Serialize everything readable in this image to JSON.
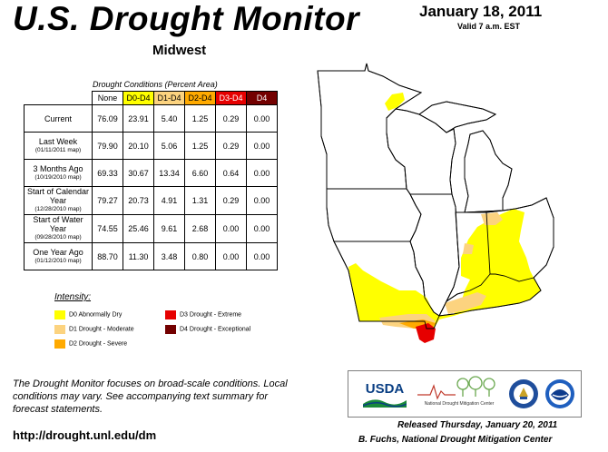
{
  "header": {
    "title": "U.S. Drought Monitor",
    "region": "Midwest",
    "date": "January 18, 2011",
    "valid": "Valid 7 a.m. EST"
  },
  "table": {
    "caption": "Drought Conditions (Percent Area)",
    "columns": [
      "None",
      "D0-D4",
      "D1-D4",
      "D2-D4",
      "D3-D4",
      "D4"
    ],
    "column_colors": [
      "#ffffff",
      "#ffff00",
      "#fcd37f",
      "#ffaa00",
      "#e60000",
      "#730000"
    ],
    "rows": [
      {
        "label": "Current",
        "sub": "",
        "values": [
          "76.09",
          "23.91",
          "5.40",
          "1.25",
          "0.29",
          "0.00"
        ]
      },
      {
        "label": "Last Week",
        "sub": "(01/11/2011 map)",
        "values": [
          "79.90",
          "20.10",
          "5.06",
          "1.25",
          "0.29",
          "0.00"
        ]
      },
      {
        "label": "3 Months Ago",
        "sub": "(10/19/2010 map)",
        "values": [
          "69.33",
          "30.67",
          "13.34",
          "6.60",
          "0.64",
          "0.00"
        ]
      },
      {
        "label": "Start of Calendar Year",
        "sub": "(12/28/2010 map)",
        "values": [
          "79.27",
          "20.73",
          "4.91",
          "1.31",
          "0.29",
          "0.00"
        ]
      },
      {
        "label": "Start of Water Year",
        "sub": "(09/28/2010 map)",
        "values": [
          "74.55",
          "25.46",
          "9.61",
          "2.68",
          "0.00",
          "0.00"
        ]
      },
      {
        "label": "One Year Ago",
        "sub": "(01/12/2010 map)",
        "values": [
          "88.70",
          "11.30",
          "3.48",
          "0.80",
          "0.00",
          "0.00"
        ]
      }
    ]
  },
  "legend": {
    "title": "Intensity:",
    "items": [
      {
        "label": "D0 Abnormally Dry",
        "color": "#ffff00"
      },
      {
        "label": "D1 Drought - Moderate",
        "color": "#fcd37f"
      },
      {
        "label": "D2 Drought - Severe",
        "color": "#ffaa00"
      },
      {
        "label": "D3 Drought - Extreme",
        "color": "#e60000"
      },
      {
        "label": "D4 Drought - Exceptional",
        "color": "#730000"
      }
    ]
  },
  "footer": {
    "note": "The Drought Monitor focuses on broad-scale conditions. Local conditions may vary. See accompanying text summary for forecast statements.",
    "url": "http://drought.unl.edu/dm",
    "released": "Released Thursday, January 20, 2011",
    "author": "B. Fuchs, National Drought Mitigation Center"
  },
  "logos": {
    "usda": "USDA",
    "ndmc": "National Drought Mitigation Center"
  }
}
